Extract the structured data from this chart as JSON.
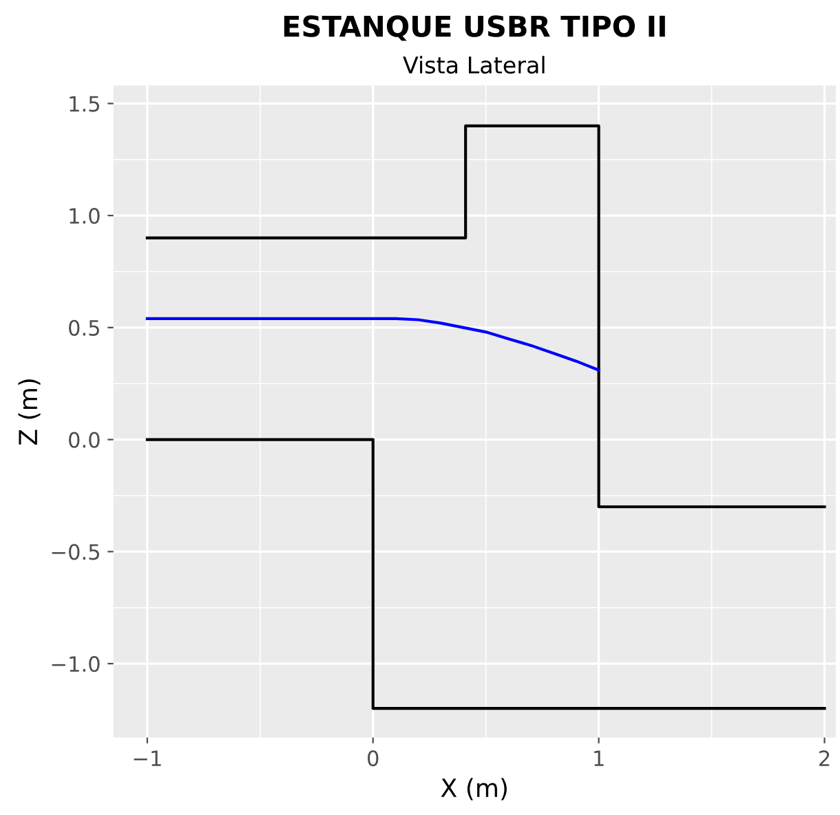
{
  "chart_data": {
    "type": "line",
    "title": "ESTANQUE USBR TIPO II",
    "subtitle": "Vista Lateral",
    "xlabel": "X (m)",
    "ylabel": "Z (m)",
    "xlim": [
      -1.15,
      2.05
    ],
    "ylim": [
      -1.33,
      1.58
    ],
    "xticks": [
      {
        "value": -1,
        "label": "−1"
      },
      0,
      1,
      2
    ],
    "yticks": [
      {
        "value": -1.0,
        "label": "−1.0"
      },
      {
        "value": -0.5,
        "label": "−0.5"
      },
      {
        "value": 0.0,
        "label": "0.0"
      },
      {
        "value": 0.5,
        "label": "0.5"
      },
      {
        "value": 1.0,
        "label": "1.0"
      },
      {
        "value": 1.5,
        "label": "1.5"
      }
    ],
    "grid": true,
    "series": [
      {
        "color": "#000000",
        "x": [
          -1,
          0.41,
          0.41,
          1,
          1,
          2
        ],
        "values": [
          0.9,
          0.9,
          1.4,
          1.4,
          -0.3,
          -0.3
        ]
      },
      {
        "color": "#000000",
        "x": [
          -1,
          0,
          0,
          2
        ],
        "values": [
          0,
          0,
          -1.2,
          -1.2
        ]
      },
      {
        "color": "#0000ff",
        "x": [
          -1,
          0,
          0.1,
          0.2,
          0.3,
          0.4,
          0.5,
          0.6,
          0.7,
          0.8,
          0.9,
          1.0
        ],
        "values": [
          0.54,
          0.54,
          0.54,
          0.535,
          0.52,
          0.5,
          0.48,
          0.45,
          0.42,
          0.385,
          0.35,
          0.31
        ]
      }
    ]
  }
}
